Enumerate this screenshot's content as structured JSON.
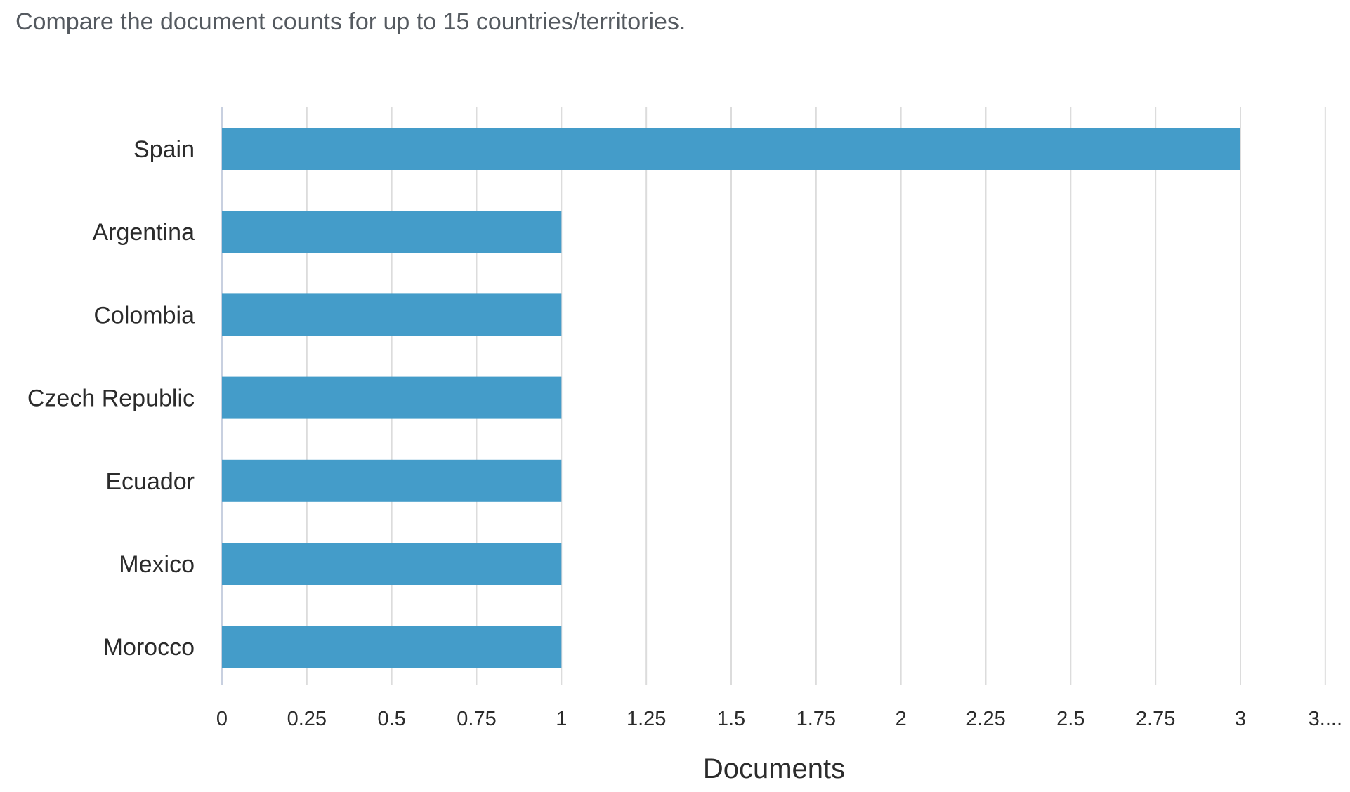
{
  "subtitle": "Compare the document counts for up to 15 countries/territories.",
  "chart_data": {
    "type": "bar",
    "orientation": "horizontal",
    "categories": [
      "Spain",
      "Argentina",
      "Colombia",
      "Czech Republic",
      "Ecuador",
      "Mexico",
      "Morocco"
    ],
    "values": [
      3,
      1,
      1,
      1,
      1,
      1,
      1
    ],
    "xlabel": "Documents",
    "ylabel": "",
    "xlim": [
      0,
      3.25
    ],
    "xticks": [
      "0",
      "0.25",
      "0.5",
      "0.75",
      "1",
      "1.25",
      "1.5",
      "1.75",
      "2",
      "2.25",
      "2.5",
      "2.75",
      "3",
      "3...."
    ],
    "grid": true,
    "bar_color": "#449cc9",
    "grid_color": "#dcdcdc"
  }
}
